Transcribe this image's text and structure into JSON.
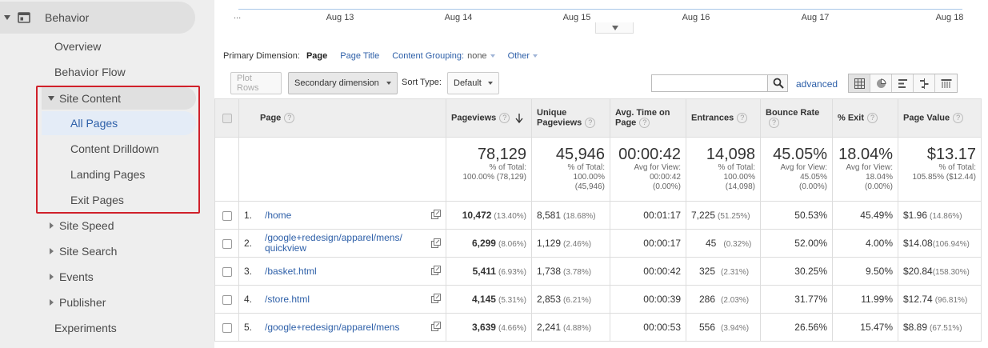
{
  "sidebar": {
    "behavior": "Behavior",
    "overview": "Overview",
    "behavior_flow": "Behavior Flow",
    "site_content": "Site Content",
    "all_pages": "All Pages",
    "content_drilldown": "Content Drilldown",
    "landing_pages": "Landing Pages",
    "exit_pages": "Exit Pages",
    "site_speed": "Site Speed",
    "site_search": "Site Search",
    "events": "Events",
    "publisher": "Publisher",
    "experiments": "Experiments"
  },
  "chart": {
    "x_labels": [
      "Aug 13",
      "Aug 14",
      "Aug 15",
      "Aug 16",
      "Aug 17",
      "Aug 18"
    ]
  },
  "dimensions": {
    "label": "Primary Dimension:",
    "active": "Page",
    "page_title": "Page Title",
    "content_grouping": "Content Grouping:",
    "content_grouping_value": "none",
    "other": "Other"
  },
  "toolbar": {
    "plot_rows": "Plot Rows",
    "secondary_dimension": "Secondary dimension",
    "sort_type_label": "Sort Type:",
    "sort_type_value": "Default",
    "advanced": "advanced",
    "search_value": ""
  },
  "table": {
    "headers": {
      "page": "Page",
      "pageviews": "Pageviews",
      "unique_pageviews": "Unique Pageviews",
      "avg_time": "Avg. Time on Page",
      "entrances": "Entrances",
      "bounce_rate": "Bounce Rate",
      "exit": "% Exit",
      "page_value": "Page Value"
    },
    "totals": {
      "pageviews": {
        "big": "78,129",
        "l1": "% of Total:",
        "l2": "100.00% (78,129)"
      },
      "unique": {
        "big": "45,946",
        "l1": "% of Total:",
        "l2": "100.00%",
        "l3": "(45,946)"
      },
      "avg_time": {
        "big": "00:00:42",
        "l1": "Avg for View:",
        "l2": "00:00:42",
        "l3": "(0.00%)"
      },
      "entrances": {
        "big": "14,098",
        "l1": "% of Total:",
        "l2": "100.00%",
        "l3": "(14,098)"
      },
      "bounce": {
        "big": "45.05%",
        "l1": "Avg for View:",
        "l2": "45.05%",
        "l3": "(0.00%)"
      },
      "exit": {
        "big": "18.04%",
        "l1": "Avg for View:",
        "l2": "18.04%",
        "l3": "(0.00%)"
      },
      "value": {
        "big": "$13.17",
        "l1": "% of Total:",
        "l2": "105.85% ($12.44)"
      }
    },
    "rows": [
      {
        "idx": "1.",
        "page": "/home",
        "pv": "10,472",
        "pv_pct": "(13.40%)",
        "upv": "8,581",
        "upv_pct": "(18.68%)",
        "time": "00:01:17",
        "ent": "7,225",
        "ent_pct": "(51.25%)",
        "bounce": "50.53%",
        "exit": "45.49%",
        "value": "$1.96",
        "value_pct": "(14.86%)"
      },
      {
        "idx": "2.",
        "page": "/google+redesign/apparel/mens/quickview",
        "page_l1": "/google+redesign/apparel/mens/",
        "page_l2": "quickview",
        "pv": "6,299",
        "pv_pct": "(8.06%)",
        "upv": "1,129",
        "upv_pct": "(2.46%)",
        "time": "00:00:17",
        "ent": "45",
        "ent_pct": "(0.32%)",
        "bounce": "52.00%",
        "exit": "4.00%",
        "value": "$14.08",
        "value_pct": "(106.94%)"
      },
      {
        "idx": "3.",
        "page": "/basket.html",
        "pv": "5,411",
        "pv_pct": "(6.93%)",
        "upv": "1,738",
        "upv_pct": "(3.78%)",
        "time": "00:00:42",
        "ent": "325",
        "ent_pct": "(2.31%)",
        "bounce": "30.25%",
        "exit": "9.50%",
        "value": "$20.84",
        "value_pct": "(158.30%)"
      },
      {
        "idx": "4.",
        "page": "/store.html",
        "pv": "4,145",
        "pv_pct": "(5.31%)",
        "upv": "2,853",
        "upv_pct": "(6.21%)",
        "time": "00:00:39",
        "ent": "286",
        "ent_pct": "(2.03%)",
        "bounce": "31.77%",
        "exit": "11.99%",
        "value": "$12.74",
        "value_pct": "(96.81%)"
      },
      {
        "idx": "5.",
        "page": "/google+redesign/apparel/mens",
        "pv": "3,639",
        "pv_pct": "(4.66%)",
        "upv": "2,241",
        "upv_pct": "(4.88%)",
        "time": "00:00:53",
        "ent": "556",
        "ent_pct": "(3.94%)",
        "bounce": "26.56%",
        "exit": "15.47%",
        "value": "$8.89",
        "value_pct": "(67.51%)"
      }
    ]
  },
  "colors": {
    "highlight": "#d0202a",
    "link": "#2d5fa8",
    "chart_line": "#a8c6e8"
  }
}
